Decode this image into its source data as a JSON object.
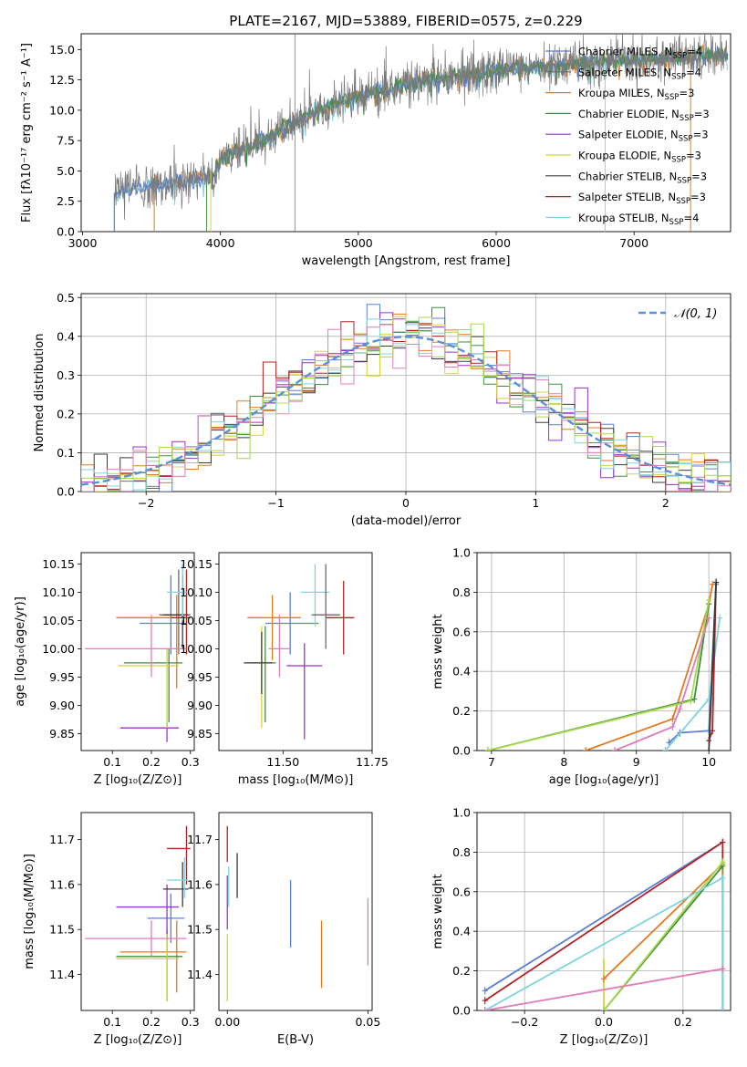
{
  "colors": {
    "Chabrier MILES": "#5b7fd6",
    "Salpeter MILES": "#6a6a6a",
    "Kroupa MILES": "#e07b24",
    "Chabrier ELODIE": "#3f8f3f",
    "Salpeter ELODIE": "#9932cc",
    "Kroupa ELODIE": "#d4d43a",
    "Chabrier STELIB": "#3a3a3a",
    "Salpeter STELIB": "#b22222",
    "Kroupa STELIB": "#7fd4e0",
    "pink": "#e07cb8",
    "lime": "#a6d84a"
  },
  "chart_data": [
    {
      "id": "spectrum",
      "type": "line",
      "title": "PLATE=2167, MJD=53889, FIBERID=0575, z=0.229",
      "xlabel": "wavelength [Angstrom, rest frame]",
      "ylabel": "Flux [fλ10⁻¹⁷ erg cm⁻² s⁻¹ A⁻¹]",
      "xlim": [
        2990,
        7700
      ],
      "ylim": [
        0,
        16.3
      ],
      "xticks": [
        "3000",
        "4000",
        "5000",
        "6000",
        "7000"
      ],
      "yticks": [
        "0.0",
        "2.5",
        "5.0",
        "7.5",
        "10.0",
        "12.5",
        "15.0"
      ],
      "legend": {
        "placement": "right",
        "entries": [
          {
            "label": "Chabrier MILES, N",
            "sub": "SSP",
            "tail": "=4"
          },
          {
            "label": "Salpeter MILES, N",
            "sub": "SSP",
            "tail": "=4"
          },
          {
            "label": "Kroupa MILES, N",
            "sub": "SSP",
            "tail": "=3"
          },
          {
            "label": "Chabrier ELODIE, N",
            "sub": "SSP",
            "tail": "=3"
          },
          {
            "label": "Salpeter ELODIE, N",
            "sub": "SSP",
            "tail": "=3"
          },
          {
            "label": "Kroupa ELODIE, N",
            "sub": "SSP",
            "tail": "=3"
          },
          {
            "label": "Chabrier STELIB, N",
            "sub": "SSP",
            "tail": "=3"
          },
          {
            "label": "Salpeter STELIB, N",
            "sub": "SSP",
            "tail": "=3"
          },
          {
            "label": "Kroupa STELIB, N",
            "sub": "SSP",
            "tail": "=4"
          }
        ]
      },
      "continuum": [
        [
          3230,
          3.2
        ],
        [
          3500,
          3.8
        ],
        [
          3800,
          4.2
        ],
        [
          3950,
          4.5
        ],
        [
          4000,
          6.0
        ],
        [
          4300,
          7.5
        ],
        [
          4600,
          9.5
        ],
        [
          5000,
          11.2
        ],
        [
          5500,
          12.5
        ],
        [
          6000,
          13.2
        ],
        [
          6500,
          13.8
        ],
        [
          7000,
          14.1
        ],
        [
          7600,
          14.5
        ]
      ]
    },
    {
      "id": "residuals",
      "type": "line",
      "xlabel": "(data-model)/error",
      "ylabel": "Normed distribution",
      "xlim": [
        -2.5,
        2.5
      ],
      "ylim": [
        0,
        0.51
      ],
      "xticks": [
        "−2",
        "−1",
        "0",
        "1",
        "2"
      ],
      "yticks": [
        "0.0",
        "0.1",
        "0.2",
        "0.3",
        "0.4",
        "0.5"
      ],
      "grid": true,
      "legend": {
        "placement": "top-right",
        "label": "𝒩(0, 1)"
      },
      "normal_curve": {
        "mu": 0,
        "sigma": 1
      }
    },
    {
      "id": "age-vs-Z",
      "type": "scatter",
      "xlabel": "Z [log₁₀(Z/Z⊙)]",
      "ylabel": "age  [log₁₀(age/yr)]",
      "xlim": [
        0.02,
        0.31
      ],
      "ylim": [
        9.82,
        10.17
      ],
      "xticks": [
        "0.1",
        "0.2",
        "0.3"
      ],
      "yticks": [
        "9.85",
        "9.90",
        "9.95",
        "10.00",
        "10.05",
        "10.10",
        "10.15"
      ],
      "points": [
        {
          "x": 0.25,
          "xlo": 0.17,
          "xhi": 0.29,
          "y": 10.045,
          "ylo": 9.99,
          "yhi": 10.13,
          "c": "Chabrier MILES"
        },
        {
          "x": 0.27,
          "xlo": 0.22,
          "xhi": 0.3,
          "y": 10.06,
          "ylo": 9.99,
          "yhi": 10.14,
          "c": "Salpeter MILES"
        },
        {
          "x": 0.265,
          "xlo": 0.11,
          "xhi": 0.285,
          "y": 10.055,
          "ylo": 9.93,
          "yhi": 10.095,
          "c": "Kroupa MILES"
        },
        {
          "x": 0.245,
          "xlo": 0.13,
          "xhi": 0.28,
          "y": 9.975,
          "ylo": 9.87,
          "yhi": 10.0,
          "c": "Chabrier ELODIE"
        },
        {
          "x": 0.24,
          "xlo": 0.12,
          "xhi": 0.27,
          "y": 9.86,
          "ylo": 9.835,
          "yhi": 9.87,
          "c": "Salpeter ELODIE"
        },
        {
          "x": 0.24,
          "xlo": 0.115,
          "xhi": 0.27,
          "y": 9.97,
          "ylo": 9.86,
          "yhi": 10.0,
          "c": "Kroupa ELODIE"
        },
        {
          "x": 0.28,
          "xlo": 0.23,
          "xhi": 0.295,
          "y": 10.06,
          "ylo": 10.0,
          "yhi": 10.13,
          "c": "Chabrier STELIB"
        },
        {
          "x": 0.29,
          "xlo": 0.25,
          "xhi": 0.3,
          "y": 10.055,
          "ylo": 9.99,
          "yhi": 10.14,
          "c": "Salpeter STELIB"
        },
        {
          "x": 0.28,
          "xlo": 0.24,
          "xhi": 0.295,
          "y": 10.1,
          "ylo": 10.05,
          "yhi": 10.15,
          "c": "Kroupa STELIB"
        },
        {
          "x": 0.2,
          "xlo": 0.03,
          "xhi": 0.29,
          "y": 10.0,
          "ylo": 9.95,
          "yhi": 10.06,
          "c": "pink"
        }
      ]
    },
    {
      "id": "age-vs-mass",
      "type": "scatter",
      "xlabel": "mass [log₁₀(M/M⊙)]",
      "ylabel": "",
      "xlim": [
        11.32,
        11.75
      ],
      "ylim": [
        9.82,
        10.17
      ],
      "xticks": [
        "11.50",
        "11.75"
      ],
      "yticks": [
        "9.85",
        "9.90",
        "9.95",
        "10.00",
        "10.05",
        "10.10",
        "10.15"
      ],
      "points": [
        {
          "x": 11.52,
          "xlo": 11.45,
          "xhi": 11.6,
          "y": 10.045,
          "ylo": 9.99,
          "yhi": 10.1,
          "c": "Chabrier MILES"
        },
        {
          "x": 11.47,
          "xlo": 11.4,
          "xhi": 11.55,
          "y": 10.055,
          "ylo": 9.98,
          "yhi": 10.095,
          "c": "Kroupa MILES"
        },
        {
          "x": 11.45,
          "xlo": 11.41,
          "xhi": 11.48,
          "y": 9.975,
          "ylo": 9.87,
          "yhi": 10.04,
          "c": "Chabrier ELODIE"
        },
        {
          "x": 11.56,
          "xlo": 11.51,
          "xhi": 11.61,
          "y": 9.97,
          "ylo": 9.84,
          "yhi": 10.01,
          "c": "Salpeter ELODIE"
        },
        {
          "x": 11.44,
          "xlo": 11.4,
          "xhi": 11.47,
          "y": 9.975,
          "ylo": 9.86,
          "yhi": 10.04,
          "c": "Kroupa ELODIE"
        },
        {
          "x": 11.44,
          "xlo": 11.39,
          "xhi": 11.47,
          "y": 9.975,
          "ylo": 9.92,
          "yhi": 10.03,
          "c": "Chabrier STELIB"
        },
        {
          "x": 11.67,
          "xlo": 11.62,
          "xhi": 11.7,
          "y": 10.055,
          "ylo": 9.99,
          "yhi": 10.12,
          "c": "Salpeter STELIB"
        },
        {
          "x": 11.59,
          "xlo": 11.55,
          "xhi": 11.63,
          "y": 10.1,
          "ylo": 10.04,
          "yhi": 10.15,
          "c": "Kroupa STELIB"
        },
        {
          "x": 11.62,
          "xlo": 11.58,
          "xhi": 11.66,
          "y": 10.06,
          "ylo": 10.0,
          "yhi": 10.15,
          "c": "Salpeter MILES"
        },
        {
          "x": 11.49,
          "xlo": 11.46,
          "xhi": 11.52,
          "y": 10.0,
          "ylo": 9.95,
          "yhi": 10.06,
          "c": "pink"
        }
      ]
    },
    {
      "id": "massweight-vs-age",
      "type": "line",
      "xlabel": "age  [log₁₀(age/yr)]",
      "ylabel": "mass weight",
      "xlim": [
        6.8,
        10.3
      ],
      "ylim": [
        0,
        1.0
      ],
      "xticks": [
        "7",
        "8",
        "9",
        "10"
      ],
      "yticks": [
        "0.0",
        "0.2",
        "0.4",
        "0.6",
        "0.8",
        "1.0"
      ],
      "grid": true,
      "series": [
        {
          "c": "Chabrier MILES",
          "x": [
            9.45,
            9.6,
            10.0,
            10.1
          ],
          "y": [
            0.04,
            0.09,
            0.1,
            0.84
          ]
        },
        {
          "c": "Kroupa MILES",
          "x": [
            8.3,
            9.5,
            10.0,
            10.05
          ],
          "y": [
            0.0,
            0.16,
            0.74,
            0.84
          ]
        },
        {
          "c": "Chabrier ELODIE",
          "x": [
            6.95,
            9.8,
            10.0
          ],
          "y": [
            0.0,
            0.26,
            0.74
          ]
        },
        {
          "c": "lime",
          "x": [
            6.95,
            9.75,
            10.0
          ],
          "y": [
            0.0,
            0.25,
            0.76
          ]
        },
        {
          "c": "pink",
          "x": [
            8.7,
            9.5,
            9.6,
            10.0
          ],
          "y": [
            0.0,
            0.12,
            0.21,
            0.67
          ]
        },
        {
          "c": "Kroupa STELIB",
          "x": [
            9.4,
            10.0,
            10.15
          ],
          "y": [
            0.0,
            0.26,
            0.67
          ]
        },
        {
          "c": "Salpeter STELIB",
          "x": [
            10.0,
            10.05,
            10.1
          ],
          "y": [
            0.05,
            0.1,
            0.85
          ]
        },
        {
          "c": "Chabrier STELIB",
          "x": [
            10.0,
            10.1
          ],
          "y": [
            0.0,
            0.85
          ]
        }
      ]
    },
    {
      "id": "mass-vs-Z",
      "type": "scatter",
      "xlabel": "Z [log₁₀(Z/Z⊙)]",
      "ylabel": "mass [log₁₀(M/M⊙)]",
      "xlim": [
        0.02,
        0.31
      ],
      "ylim": [
        11.32,
        11.76
      ],
      "xticks": [
        "0.1",
        "0.2",
        "0.3"
      ],
      "yticks": [
        "11.4",
        "11.5",
        "11.6",
        "11.7"
      ],
      "points": [
        {
          "x": 0.25,
          "xlo": 0.19,
          "xhi": 0.285,
          "y": 11.525,
          "ylo": 11.47,
          "yhi": 11.58,
          "c": "Chabrier MILES"
        },
        {
          "x": 0.265,
          "xlo": 0.12,
          "xhi": 0.29,
          "y": 11.45,
          "ylo": 11.36,
          "yhi": 11.52,
          "c": "Kroupa MILES"
        },
        {
          "x": 0.24,
          "xlo": 0.11,
          "xhi": 0.28,
          "y": 11.44,
          "ylo": 11.34,
          "yhi": 11.5,
          "c": "Chabrier ELODIE"
        },
        {
          "x": 0.24,
          "xlo": 0.11,
          "xhi": 0.27,
          "y": 11.55,
          "ylo": 11.48,
          "yhi": 11.6,
          "c": "Salpeter ELODIE"
        },
        {
          "x": 0.24,
          "xlo": 0.11,
          "xhi": 0.27,
          "y": 11.435,
          "ylo": 11.34,
          "yhi": 11.49,
          "c": "Kroupa ELODIE"
        },
        {
          "x": 0.28,
          "xlo": 0.23,
          "xhi": 0.295,
          "y": 11.59,
          "ylo": 11.55,
          "yhi": 11.65,
          "c": "Chabrier STELIB"
        },
        {
          "x": 0.29,
          "xlo": 0.24,
          "xhi": 0.3,
          "y": 11.68,
          "ylo": 11.6,
          "yhi": 11.73,
          "c": "Salpeter STELIB"
        },
        {
          "x": 0.285,
          "xlo": 0.24,
          "xhi": 0.295,
          "y": 11.61,
          "ylo": 11.57,
          "yhi": 11.66,
          "c": "Kroupa STELIB"
        },
        {
          "x": 0.2,
          "xlo": 0.03,
          "xhi": 0.29,
          "y": 11.48,
          "ylo": 11.44,
          "yhi": 11.52,
          "c": "pink"
        }
      ]
    },
    {
      "id": "mass-vs-EBV",
      "type": "scatter",
      "xlabel": "E(B-V)",
      "ylabel": "",
      "xlim": [
        -0.003,
        0.0515
      ],
      "ylim": [
        11.32,
        11.76
      ],
      "xticks": [
        "0.00",
        "0.05"
      ],
      "yticks": [
        "11.4",
        "11.5",
        "11.6",
        "11.7"
      ],
      "points": [
        {
          "x": 0.0,
          "ylo": 11.65,
          "yhi": 11.73,
          "c": "Salpeter STELIB"
        },
        {
          "x": 0.0,
          "ylo": 11.5,
          "yhi": 11.62,
          "c": "Salpeter ELODIE"
        },
        {
          "x": 0.0,
          "ylo": 11.34,
          "yhi": 11.49,
          "c": "Kroupa ELODIE"
        },
        {
          "x": 0.0005,
          "ylo": 11.55,
          "yhi": 11.64,
          "c": "Kroupa STELIB"
        },
        {
          "x": 0.0035,
          "ylo": 11.57,
          "yhi": 11.67,
          "c": "Chabrier STELIB"
        },
        {
          "x": 0.0225,
          "ylo": 11.46,
          "yhi": 11.61,
          "c": "Chabrier MILES"
        },
        {
          "x": 0.0335,
          "ylo": 11.37,
          "yhi": 11.52,
          "c": "Kroupa MILES"
        },
        {
          "x": 0.05,
          "ylo": 11.42,
          "yhi": 11.57,
          "c": "pink"
        }
      ]
    },
    {
      "id": "massweight-vs-Z",
      "type": "line",
      "xlabel": "Z [log₁₀(Z/Z⊙)]",
      "ylabel": "mass weight",
      "xlim": [
        -0.32,
        0.32
      ],
      "ylim": [
        0,
        1.0
      ],
      "xticks": [
        "−0.2",
        "0.0",
        "0.2"
      ],
      "yticks": [
        "0.0",
        "0.2",
        "0.4",
        "0.6",
        "0.8",
        "1.0"
      ],
      "grid": true,
      "series": [
        {
          "c": "Chabrier MILES",
          "x": [
            -0.3,
            0.3
          ],
          "y": [
            0.1,
            0.85
          ]
        },
        {
          "c": "Salpeter STELIB",
          "x": [
            -0.3,
            0.3
          ],
          "y": [
            0.05,
            0.85
          ]
        },
        {
          "c": "Kroupa MILES",
          "x": [
            0.0,
            0.3
          ],
          "y": [
            0.16,
            0.74
          ]
        },
        {
          "c": "Chabrier ELODIE",
          "x": [
            0.0,
            0.3
          ],
          "y": [
            0.0,
            0.73
          ]
        },
        {
          "c": "lime",
          "x": [
            0.0,
            0.3
          ],
          "y": [
            0.0,
            0.75
          ]
        },
        {
          "c": "Kroupa STELIB",
          "x": [
            -0.3,
            0.3
          ],
          "y": [
            0.0,
            0.67
          ]
        },
        {
          "c": "pink",
          "x": [
            -0.3,
            0.3
          ],
          "y": [
            0.0,
            0.21
          ]
        }
      ],
      "verticals": [
        {
          "c": "Salpeter STELIB",
          "x": 0.3,
          "ylo": 0.0,
          "yhi": 0.85
        },
        {
          "c": "Kroupa MILES",
          "x": 0.3,
          "ylo": 0.0,
          "yhi": 0.74
        },
        {
          "c": "Kroupa STELIB",
          "x": 0.3,
          "ylo": 0.0,
          "yhi": 0.67
        },
        {
          "c": "Kroupa ELODIE",
          "x": 0.0,
          "ylo": 0.0,
          "yhi": 0.26
        }
      ]
    }
  ]
}
